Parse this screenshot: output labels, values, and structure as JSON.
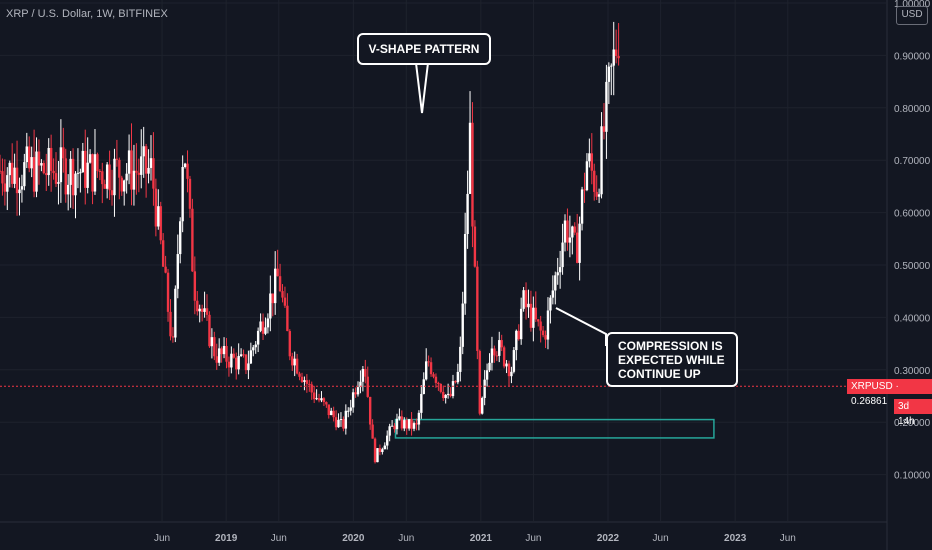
{
  "header": {
    "legend": "XRP / U.S. Dollar, 1W, BITFINEX",
    "currency": "USD"
  },
  "price_tag": "XRPUSD · 0.26861",
  "timer_tag": "3d 14h",
  "annotations": {
    "vshape": "V-SHAPE PATTERN",
    "compression": [
      "COMPRESSION IS",
      "EXPECTED WHILE",
      "CONTINUE UP"
    ]
  },
  "colors": {
    "background": "#131722",
    "up": "#ffffff",
    "down": "#f23645",
    "zone": "#26a69a",
    "grid": "#1e222d"
  },
  "chart_data": {
    "type": "candlestick",
    "symbol": "XRPUSD",
    "exchange": "BITFINEX",
    "interval": "1W",
    "ylim": [
      0.0,
      1.0
    ],
    "y_ticks": [
      0.1,
      0.2,
      0.3,
      0.4,
      0.5,
      0.6,
      0.7,
      0.8,
      0.9,
      1.0
    ],
    "y_tick_labels": [
      "0.10000",
      "0.20000",
      "0.30000",
      "0.40000",
      "0.50000",
      "0.60000",
      "0.70000",
      "0.80000",
      "0.90000",
      "1.00000"
    ],
    "x_range": [
      "2018-04",
      "2023-08"
    ],
    "x_ticks": [
      {
        "date": "2018-07",
        "label": "Jun"
      },
      {
        "date": "2019-01",
        "label": "2019"
      },
      {
        "date": "2019-06",
        "label": "Jun"
      },
      {
        "date": "2020-01",
        "label": "2020"
      },
      {
        "date": "2020-06",
        "label": "Jun"
      },
      {
        "date": "2021-01",
        "label": "2021"
      },
      {
        "date": "2021-06",
        "label": "Jun"
      },
      {
        "date": "2022-01",
        "label": "2022"
      },
      {
        "date": "2022-06",
        "label": "Jun"
      },
      {
        "date": "2023-01",
        "label": "2023"
      },
      {
        "date": "2023-06",
        "label": "Jun"
      }
    ],
    "last_price": 0.26861,
    "support_zone": {
      "from": "2020-05",
      "to": "2022-11",
      "low": 0.17,
      "high": 0.205
    },
    "series": [
      {
        "date": "2018-06",
        "price": 0.68
      },
      {
        "date": "2018-08",
        "price": 0.34
      },
      {
        "date": "2018-09",
        "price": 0.75
      },
      {
        "date": "2018-10",
        "price": 0.46
      },
      {
        "date": "2018-12",
        "price": 0.33
      },
      {
        "date": "2019-03",
        "price": 0.31
      },
      {
        "date": "2019-06",
        "price": 0.48
      },
      {
        "date": "2019-07",
        "price": 0.34
      },
      {
        "date": "2019-09",
        "price": 0.26
      },
      {
        "date": "2019-12",
        "price": 0.19
      },
      {
        "date": "2020-02",
        "price": 0.32
      },
      {
        "date": "2020-03",
        "price": 0.13
      },
      {
        "date": "2020-05",
        "price": 0.2
      },
      {
        "date": "2020-07",
        "price": 0.19
      },
      {
        "date": "2020-08",
        "price": 0.32
      },
      {
        "date": "2020-10",
        "price": 0.24
      },
      {
        "date": "2020-11",
        "price": 0.3
      },
      {
        "date": "2020-12",
        "price": 0.75
      },
      {
        "date": "2020-12-28",
        "price": 0.2
      },
      {
        "date": "2021-02",
        "price": 0.36
      },
      {
        "date": "2021-04",
        "price": 0.3
      },
      {
        "date": "2021-05",
        "price": 0.43
      },
      {
        "date": "2021-07",
        "price": 0.36
      },
      {
        "date": "2021-09",
        "price": 0.58
      },
      {
        "date": "2021-10",
        "price": 0.52
      },
      {
        "date": "2021-11",
        "price": 0.7
      },
      {
        "date": "2021-12",
        "price": 0.65
      },
      {
        "date": "2022-01",
        "price": 0.82
      },
      {
        "date": "2022-02",
        "price": 0.95
      }
    ]
  }
}
